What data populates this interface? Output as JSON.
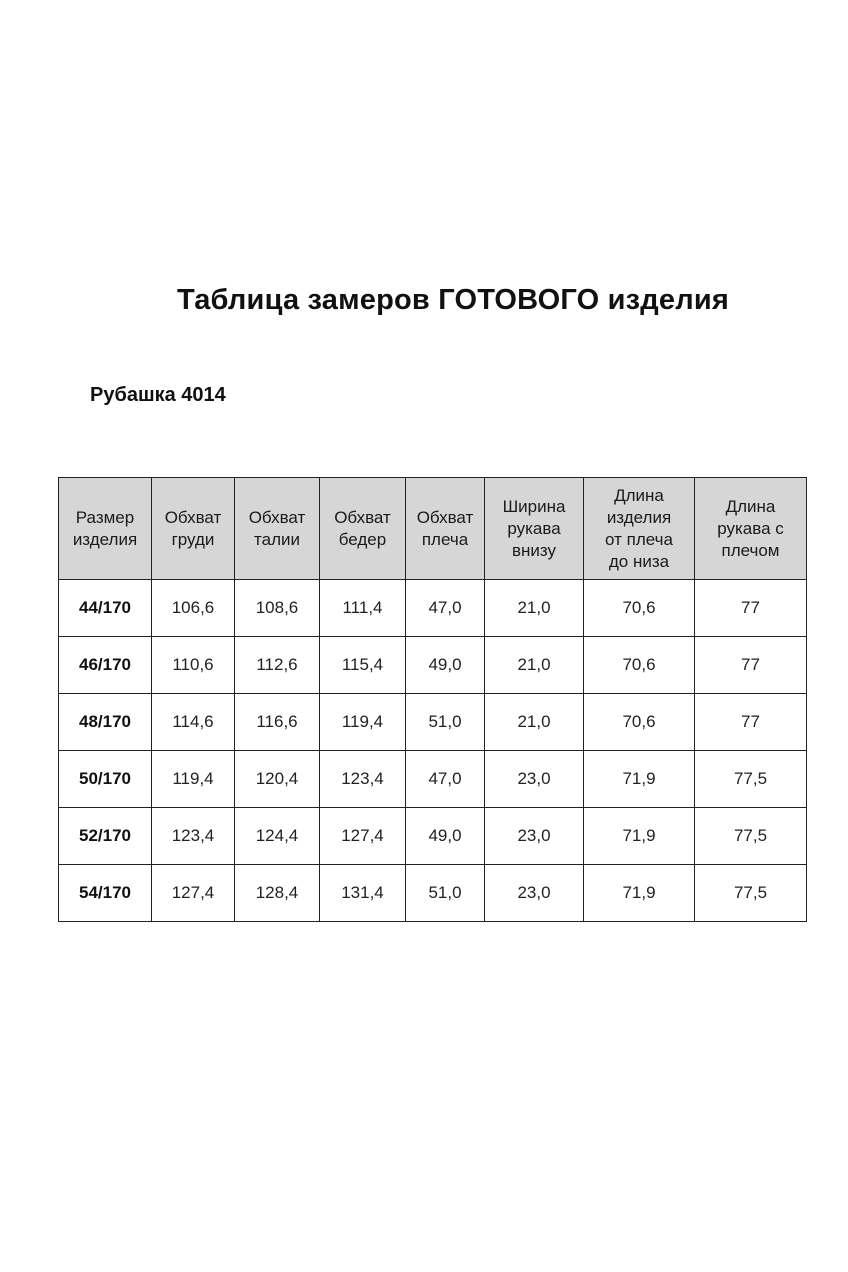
{
  "title": "Таблица замеров ГОТОВОГО изделия",
  "subtitle": "Рубашка 4014",
  "table": {
    "headers": [
      [
        "Размер",
        "изделия"
      ],
      [
        "Обхват",
        "груди"
      ],
      [
        "Обхват",
        "талии"
      ],
      [
        "Обхват",
        "бедер"
      ],
      [
        "Обхват",
        "плеча"
      ],
      [
        "Ширина",
        "рукава",
        "внизу"
      ],
      [
        "Длина",
        "изделия",
        "от плеча",
        "до низа"
      ],
      [
        "Длина",
        "рукава с",
        "плечом"
      ]
    ],
    "rows": [
      [
        "44/170",
        "106,6",
        "108,6",
        "111,4",
        "47,0",
        "21,0",
        "70,6",
        "77"
      ],
      [
        "46/170",
        "110,6",
        "112,6",
        "115,4",
        "49,0",
        "21,0",
        "70,6",
        "77"
      ],
      [
        "48/170",
        "114,6",
        "116,6",
        "119,4",
        "51,0",
        "21,0",
        "70,6",
        "77"
      ],
      [
        "50/170",
        "119,4",
        "120,4",
        "123,4",
        "47,0",
        "23,0",
        "71,9",
        "77,5"
      ],
      [
        "52/170",
        "123,4",
        "124,4",
        "127,4",
        "49,0",
        "23,0",
        "71,9",
        "77,5"
      ],
      [
        "54/170",
        "127,4",
        "128,4",
        "131,4",
        "51,0",
        "23,0",
        "71,9",
        "77,5"
      ]
    ]
  },
  "colors": {
    "header_bg": "#d6d6d6",
    "border": "#222222"
  }
}
